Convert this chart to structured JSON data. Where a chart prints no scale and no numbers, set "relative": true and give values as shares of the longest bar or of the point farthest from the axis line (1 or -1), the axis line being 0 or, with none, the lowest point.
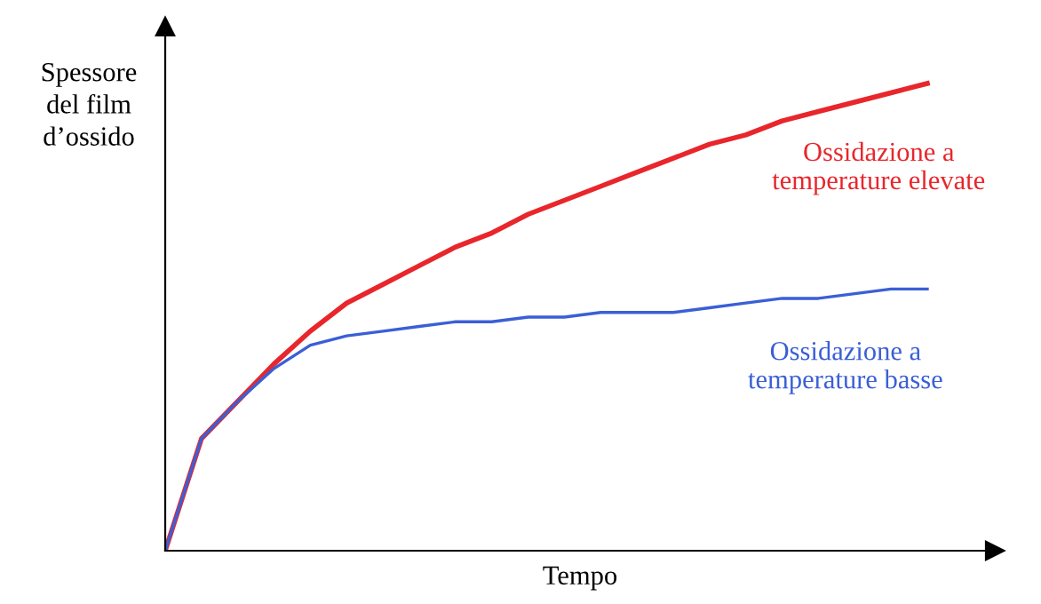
{
  "chart_data": {
    "type": "line",
    "relative": true,
    "xlabel": "Tempo",
    "ylabel": "Spessore\ndel film\nd’ossido",
    "categories": [
      null,
      null,
      null,
      null,
      null,
      null,
      null,
      null,
      null,
      null,
      null,
      null,
      null,
      null,
      null,
      null,
      null,
      null,
      null,
      null,
      null,
      null
    ],
    "series": [
      {
        "name": "Ossidazione a\ntemperature elevate",
        "color": "#e8262b",
        "values": [
          0,
          0.24,
          0.32,
          0.4,
          0.47,
          0.53,
          0.57,
          0.61,
          0.65,
          0.68,
          0.72,
          0.75,
          0.78,
          0.81,
          0.84,
          0.87,
          0.89,
          0.92,
          0.94,
          0.96,
          0.98,
          1.0
        ]
      },
      {
        "name": "Ossidazione a\ntemperature basse",
        "color": "#3a5fd6",
        "values": [
          0,
          0.24,
          0.32,
          0.39,
          0.44,
          0.46,
          0.47,
          0.48,
          0.49,
          0.49,
          0.5,
          0.5,
          0.51,
          0.51,
          0.51,
          0.52,
          0.53,
          0.54,
          0.54,
          0.55,
          0.56,
          0.56
        ]
      }
    ],
    "marker": "none",
    "line_style": "solid"
  }
}
